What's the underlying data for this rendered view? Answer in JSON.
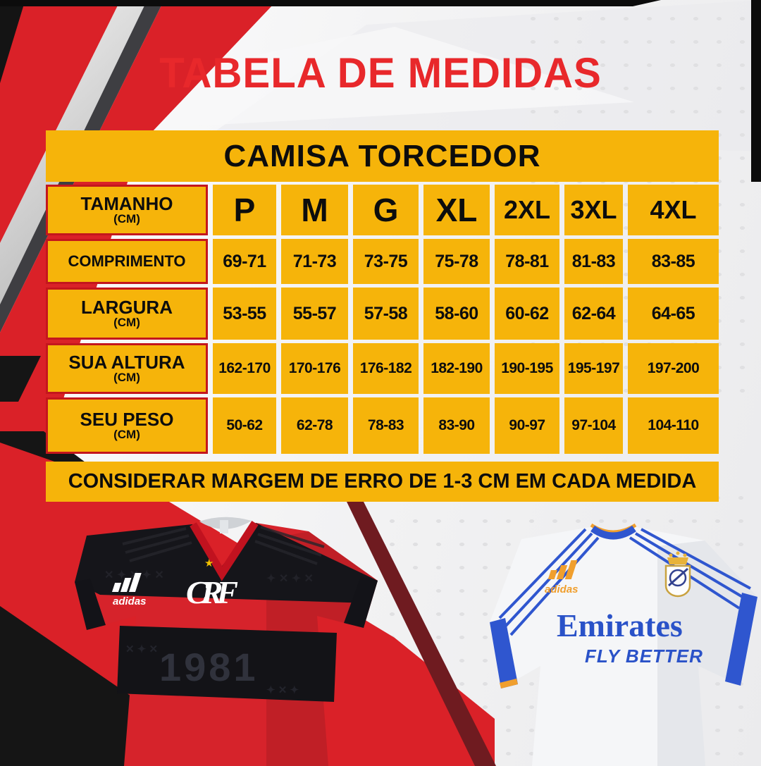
{
  "page": {
    "title": "TABELA DE MEDIDAS"
  },
  "table": {
    "header": "CAMISA TORCEDOR",
    "size_header": {
      "label": "TAMANHO",
      "unit": "(CM)"
    },
    "sizes": [
      "P",
      "M",
      "G",
      "XL",
      "2XL",
      "3XL",
      "4XL"
    ],
    "rows": [
      {
        "label": "COMPRIMENTO",
        "unit": "",
        "values": [
          "69-71",
          "71-73",
          "73-75",
          "75-78",
          "78-81",
          "81-83",
          "83-85"
        ]
      },
      {
        "label": "LARGURA",
        "unit": "(CM)",
        "values": [
          "53-55",
          "55-57",
          "57-58",
          "58-60",
          "60-62",
          "62-64",
          "64-65"
        ]
      },
      {
        "label": "SUA ALTURA",
        "unit": "(CM)",
        "values": [
          "162-170",
          "170-176",
          "176-182",
          "182-190",
          "190-195",
          "195-197",
          "197-200"
        ]
      },
      {
        "label": "SEU PESO",
        "unit": "(CM)",
        "values": [
          "50-62",
          "62-78",
          "78-83",
          "83-90",
          "90-97",
          "97-104",
          "104-110"
        ]
      }
    ],
    "note": "CONSIDERAR MARGEM DE ERRO DE 1-3 CM EM CADA MEDIDA"
  },
  "jerseys": {
    "flamengo": {
      "brand_text": "adidas",
      "crest_text": "CRF",
      "crest_star": "★",
      "pattern_text": "1981"
    },
    "real_madrid": {
      "brand_text": "adidas",
      "sponsor_line1": "Emirates",
      "sponsor_line2": "FLY BETTER"
    }
  },
  "colors": {
    "yellow": "#F6B40A",
    "red": "#DA2128",
    "title_red": "#E8282B",
    "black": "#141414"
  }
}
